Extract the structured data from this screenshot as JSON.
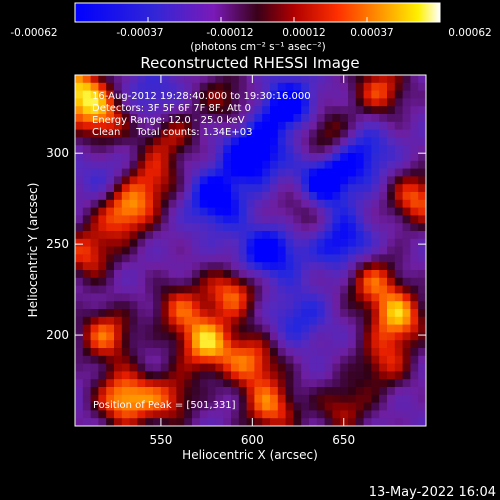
{
  "colorbar": {
    "ticks": [
      "-0.00062",
      "-0.00037",
      "-0.00012",
      "0.00012",
      "0.00037",
      "0.00062"
    ],
    "unit_label": "(photons cm⁻² s⁻¹ asec⁻²)",
    "range": [
      -0.00062,
      0.00062
    ]
  },
  "title": "Reconstructed RHESSI Image",
  "info_lines": [
    "16-Aug-2012 19:28:40.000 to 19:30:16.000",
    "Detectors: 3F 5F 6F 7F 8F, Att 0",
    "Energy Range: 12.0 - 25.0 keV",
    "Clean     Total counts: 1.34E+03"
  ],
  "peak_label": "Position of Peak = [501,331]",
  "xlabel": "Heliocentric X (arcsec)",
  "ylabel": "Heliocentric Y (arcsec)",
  "timestamp": "13-May-2022 16:04",
  "chart_data": {
    "type": "heatmap",
    "title": "Reconstructed RHESSI Image",
    "xlabel": "Heliocentric X (arcsec)",
    "ylabel": "Heliocentric Y (arcsec)",
    "x_ticks": [
      550,
      600,
      650
    ],
    "y_ticks": [
      200,
      250,
      300
    ],
    "xlim": [
      503,
      695
    ],
    "ylim": [
      150,
      343
    ],
    "colorbar_range": [
      -0.00062,
      0.00062
    ],
    "peak_position": [
      501,
      331
    ],
    "blobs": [
      {
        "x": 503,
        "y": 335,
        "value": 0.00062
      },
      {
        "x": 518,
        "y": 320,
        "value": 0.0005
      },
      {
        "x": 530,
        "y": 268,
        "value": 0.00058
      },
      {
        "x": 510,
        "y": 245,
        "value": 0.00045
      },
      {
        "x": 545,
        "y": 285,
        "value": 0.0004
      },
      {
        "x": 575,
        "y": 195,
        "value": 0.0006
      },
      {
        "x": 590,
        "y": 225,
        "value": 0.00055
      },
      {
        "x": 600,
        "y": 185,
        "value": 0.00048
      },
      {
        "x": 560,
        "y": 215,
        "value": 0.0004
      },
      {
        "x": 520,
        "y": 200,
        "value": 0.0005
      },
      {
        "x": 530,
        "y": 165,
        "value": 0.00062
      },
      {
        "x": 610,
        "y": 160,
        "value": 0.0005
      },
      {
        "x": 555,
        "y": 165,
        "value": 0.0004
      },
      {
        "x": 680,
        "y": 210,
        "value": 0.00058
      },
      {
        "x": 665,
        "y": 230,
        "value": 0.00045
      },
      {
        "x": 690,
        "y": 275,
        "value": 0.0005
      },
      {
        "x": 672,
        "y": 185,
        "value": 0.00038
      },
      {
        "x": 555,
        "y": 310,
        "value": 0.00035
      },
      {
        "x": 585,
        "y": 330,
        "value": 0.0003
      },
      {
        "x": 640,
        "y": 310,
        "value": 0.0004
      },
      {
        "x": 670,
        "y": 335,
        "value": 0.00045
      },
      {
        "x": 625,
        "y": 265,
        "value": 0.0003
      },
      {
        "x": 650,
        "y": 160,
        "value": 0.00035
      },
      {
        "x": 600,
        "y": 300,
        "value": -0.00055
      },
      {
        "x": 620,
        "y": 325,
        "value": -0.0005
      },
      {
        "x": 580,
        "y": 275,
        "value": -0.00045
      },
      {
        "x": 640,
        "y": 285,
        "value": -0.0005
      },
      {
        "x": 615,
        "y": 250,
        "value": -0.00035
      },
      {
        "x": 650,
        "y": 250,
        "value": -0.0004
      },
      {
        "x": 600,
        "y": 240,
        "value": -0.0003
      },
      {
        "x": 545,
        "y": 330,
        "value": -0.00025
      },
      {
        "x": 625,
        "y": 210,
        "value": -0.00025
      },
      {
        "x": 660,
        "y": 300,
        "value": -0.00035
      },
      {
        "x": 520,
        "y": 285,
        "value": -0.0002
      }
    ]
  }
}
